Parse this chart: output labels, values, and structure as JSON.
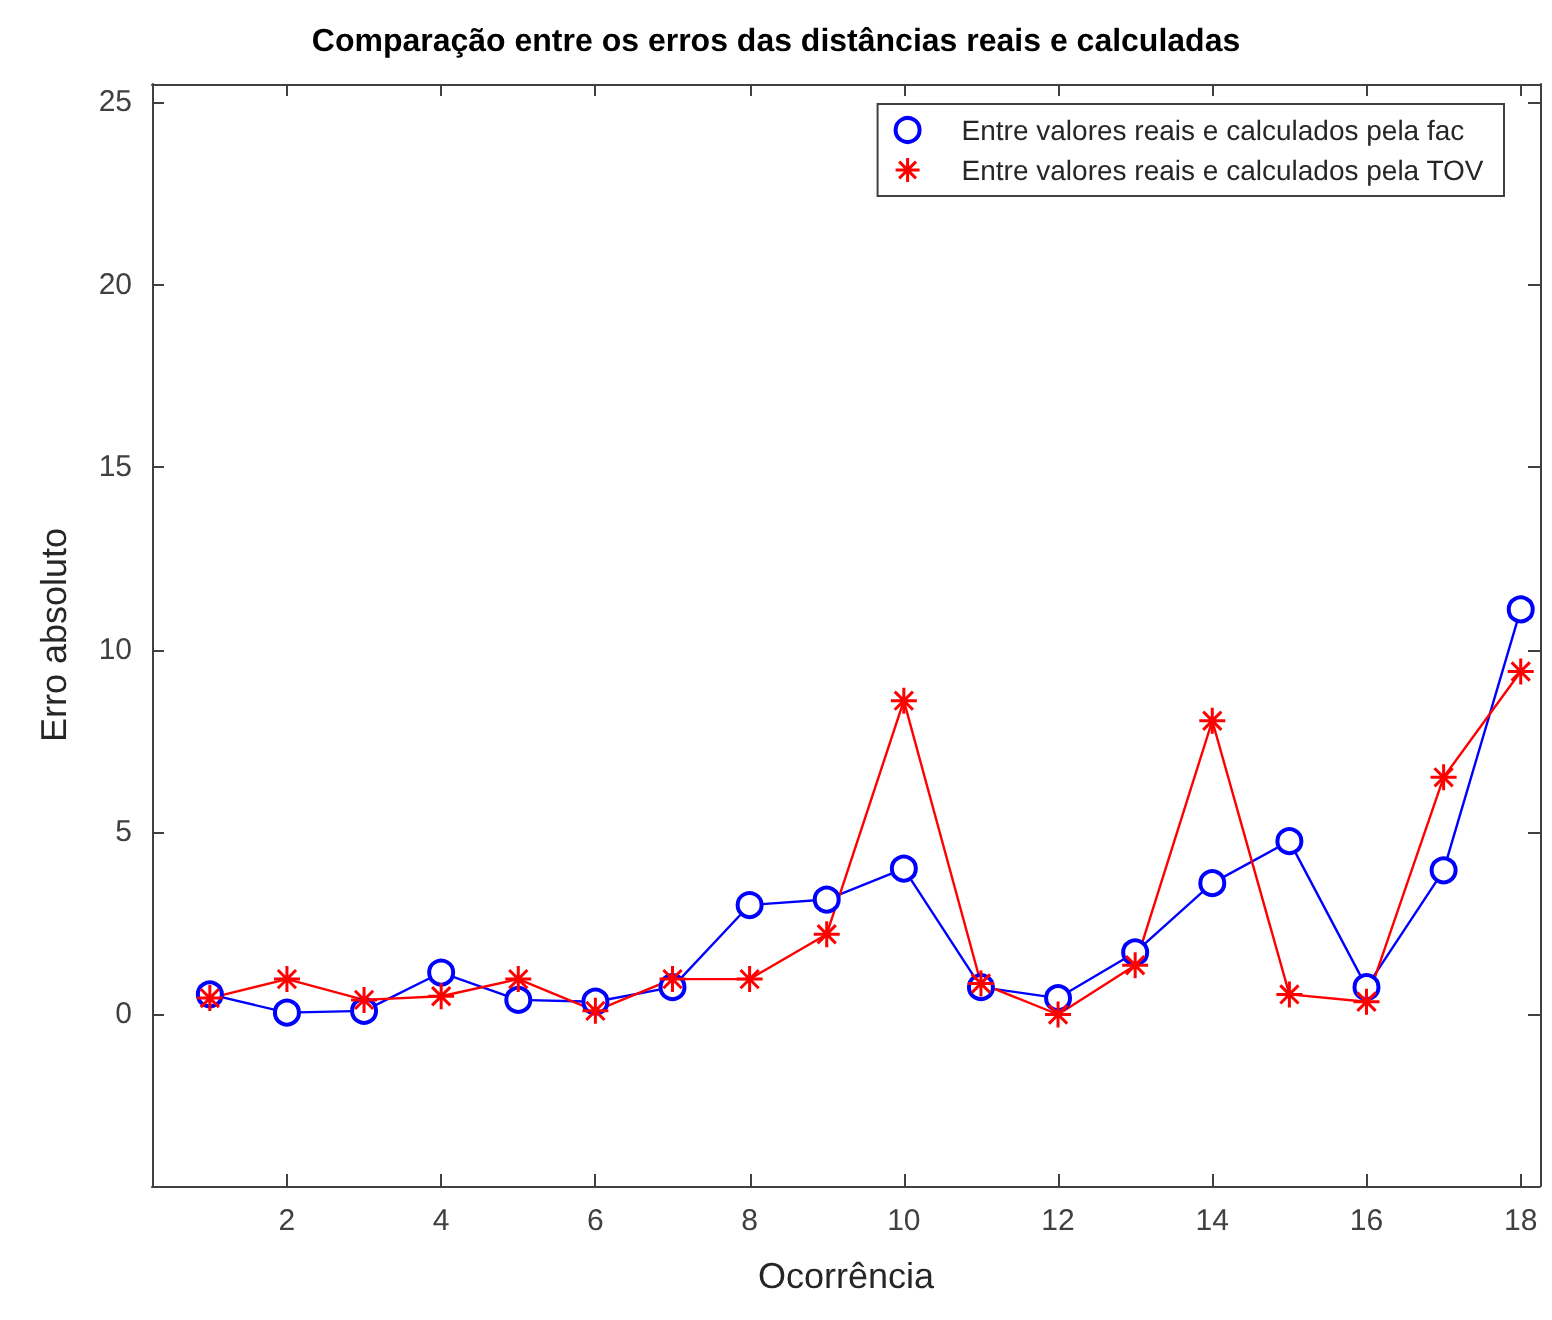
{
  "chart_data": {
    "type": "line",
    "title": "Comparação entre os erros das distâncias reais e calculadas",
    "xlabel": "Ocorrência",
    "ylabel": "Erro absoluto",
    "x": [
      1,
      2,
      3,
      4,
      5,
      6,
      7,
      8,
      9,
      10,
      11,
      12,
      13,
      14,
      15,
      16,
      17,
      18
    ],
    "series": [
      {
        "name": "Entre valores reais e calculados pela fac",
        "color": "#0000ff",
        "marker": "circle",
        "values": [
          0.55,
          0.05,
          0.1,
          1.15,
          0.4,
          0.35,
          0.75,
          3.0,
          3.15,
          4.0,
          0.75,
          0.45,
          1.7,
          3.6,
          4.75,
          0.75,
          3.95,
          11.1
        ]
      },
      {
        "name": "Entre valores reais e calculados pela TOV",
        "color": "#ff0000",
        "marker": "cross",
        "values": [
          0.45,
          0.97,
          0.4,
          0.5,
          0.97,
          0.1,
          0.97,
          0.97,
          2.2,
          8.6,
          0.85,
          0.0,
          1.35,
          8.05,
          0.55,
          0.35,
          6.5,
          9.4
        ]
      }
    ],
    "xlim": [
      0.25,
      18.25
    ],
    "xticks": [
      2,
      4,
      6,
      8,
      10,
      12,
      14,
      16,
      18
    ],
    "ylim": [
      -4.7,
      25.5
    ],
    "yticks": [
      0,
      5,
      10,
      15,
      20,
      25
    ],
    "grid": false,
    "legend": "top right",
    "line_style": "solid"
  }
}
